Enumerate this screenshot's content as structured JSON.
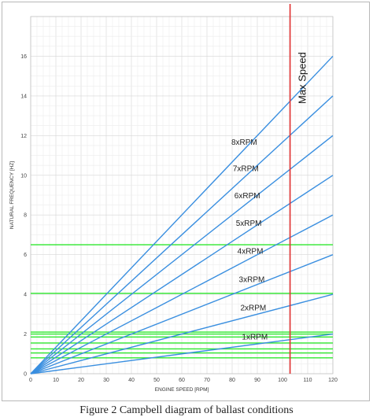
{
  "chart_data": {
    "type": "line",
    "title": "",
    "xlabel": "ENGINE SPEED [RPM]",
    "ylabel": "NATURAL FREQUENCY [HZ]",
    "xlim": [
      0,
      120
    ],
    "ylim": [
      0,
      18
    ],
    "xticks": [
      "0",
      "10",
      "20",
      "30",
      "40",
      "50",
      "60",
      "70",
      "80",
      "90",
      "100",
      "110",
      "120"
    ],
    "yticks": [
      "0",
      "2",
      "4",
      "6",
      "8",
      "10",
      "12",
      "14",
      "16"
    ],
    "grid": true,
    "series": [
      {
        "name": "1xRPM",
        "x": [
          0,
          120
        ],
        "y": [
          0,
          2
        ],
        "color": "#3a8fe0"
      },
      {
        "name": "2xRPM",
        "x": [
          0,
          120
        ],
        "y": [
          0,
          4
        ],
        "color": "#3a8fe0"
      },
      {
        "name": "3xRPM",
        "x": [
          0,
          120
        ],
        "y": [
          0,
          6
        ],
        "color": "#3a8fe0"
      },
      {
        "name": "4xRPM",
        "x": [
          0,
          120
        ],
        "y": [
          0,
          8
        ],
        "color": "#3a8fe0"
      },
      {
        "name": "5xRPM",
        "x": [
          0,
          120
        ],
        "y": [
          0,
          10
        ],
        "color": "#3a8fe0"
      },
      {
        "name": "6xRPM",
        "x": [
          0,
          120
        ],
        "y": [
          0,
          12
        ],
        "color": "#3a8fe0"
      },
      {
        "name": "7xRPM",
        "x": [
          0,
          120
        ],
        "y": [
          0,
          14
        ],
        "color": "#3a8fe0"
      },
      {
        "name": "8xRPM",
        "x": [
          0,
          120
        ],
        "y": [
          0,
          16
        ],
        "color": "#3a8fe0"
      }
    ],
    "natural_frequencies_hz": [
      0.8,
      1.05,
      1.25,
      1.55,
      1.85,
      2.0,
      2.1,
      4.05,
      6.5
    ],
    "natural_frequency_color": "#2ee82e",
    "max_speed": {
      "label": "Max Speed",
      "x": 103,
      "color": "#e03030"
    }
  },
  "caption": "Figure 2 Campbell diagram of ballast conditions"
}
